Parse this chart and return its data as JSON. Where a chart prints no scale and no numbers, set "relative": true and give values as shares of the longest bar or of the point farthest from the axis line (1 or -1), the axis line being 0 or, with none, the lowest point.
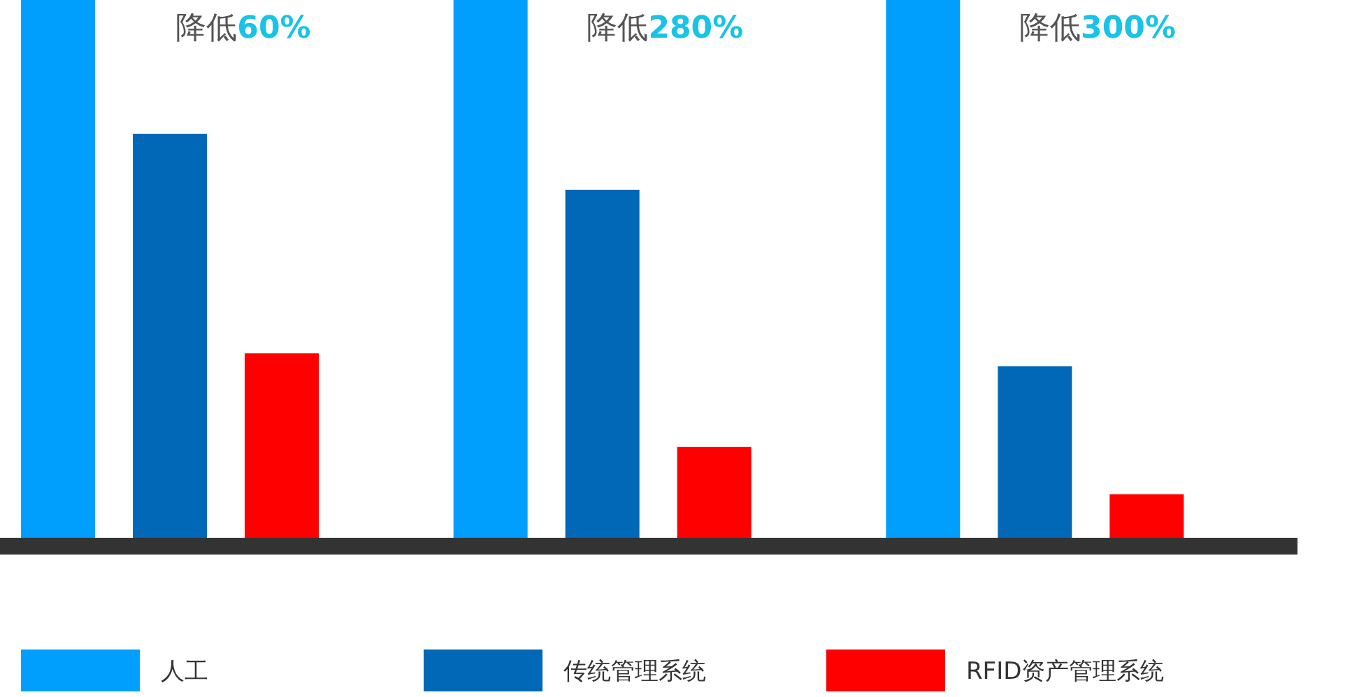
{
  "chart_data": {
    "type": "bar",
    "relative": true,
    "categories": [
      null,
      null,
      null
    ],
    "series": [
      {
        "name": "人工",
        "color": "#009ffd",
        "values": [
          1,
          1,
          1
        ]
      },
      {
        "name": "传统管理系统",
        "color": "#0068b7",
        "values": [
          0.751,
          0.647,
          0.319
        ]
      },
      {
        "name": "RFID资产管理系统",
        "color": "#ff0000",
        "values": [
          0.343,
          0.169,
          0.081
        ]
      }
    ],
    "annotations": [
      "降低60%",
      "降低280%",
      "降低300%"
    ],
    "legend": "bottom"
  }
}
